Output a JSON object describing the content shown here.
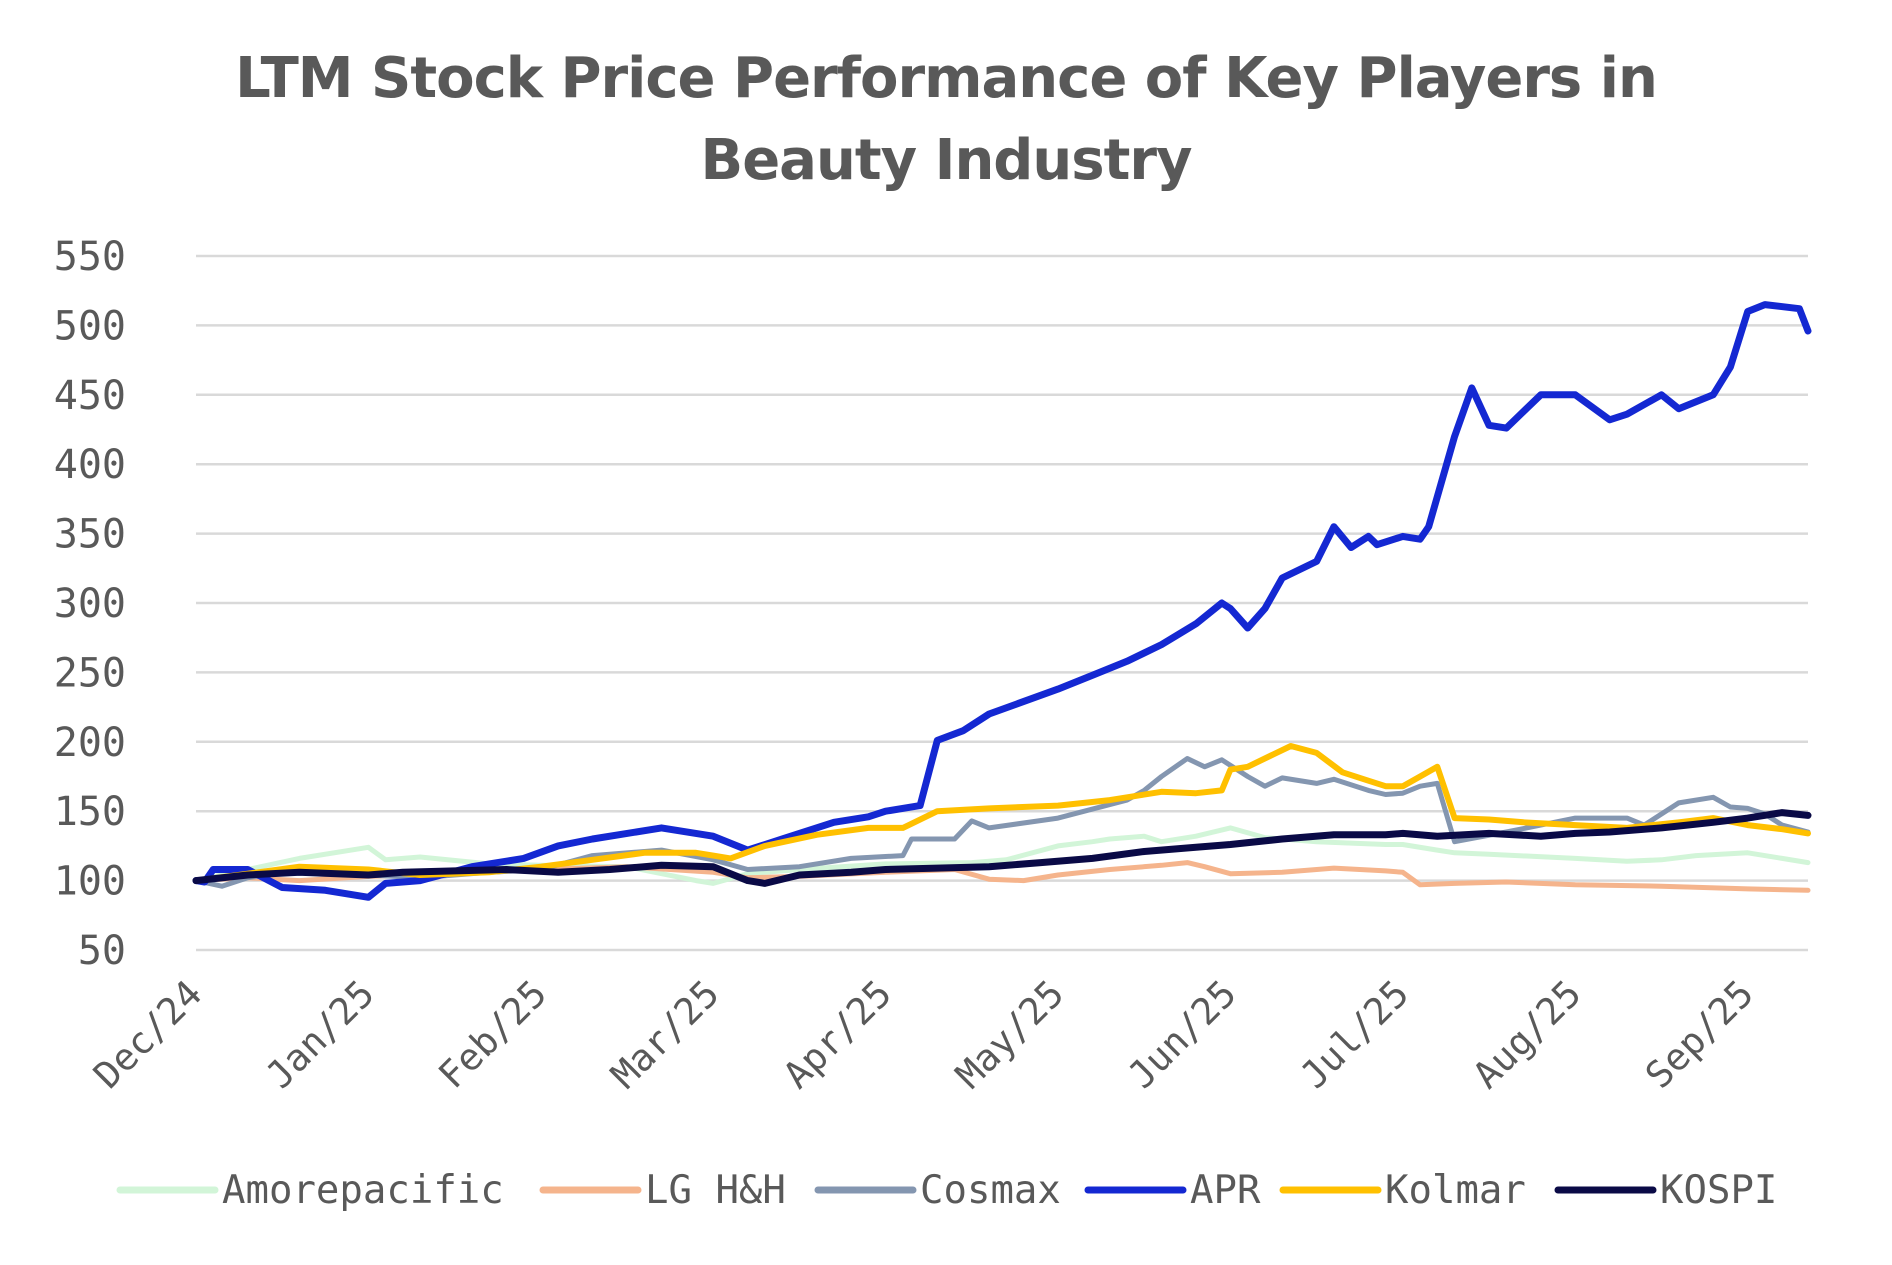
{
  "chart_data": {
    "type": "line",
    "title_line1": "LTM Stock Price Performance of Key Players in",
    "title_line2": "Beauty Industry",
    "xlabel": "",
    "ylabel": "",
    "ylim": [
      50,
      550
    ],
    "yticks": [
      50,
      100,
      150,
      200,
      250,
      300,
      350,
      400,
      450,
      500,
      550
    ],
    "ytick_labels": [
      "50",
      "100",
      "150",
      "200",
      "250",
      "300",
      "350",
      "400",
      "450",
      "500",
      "550"
    ],
    "xlim": [
      0,
      9.35
    ],
    "xticks": [
      0,
      1,
      2,
      3,
      4,
      5,
      6,
      7,
      8,
      9
    ],
    "xtick_labels": [
      "Dec/24",
      "Jan/25",
      "Feb/25",
      "Mar/25",
      "Apr/25",
      "May/25",
      "Jun/25",
      "Jul/25",
      "Aug/25",
      "Sep/25"
    ],
    "grid": true,
    "legend_position": "bottom",
    "series": [
      {
        "name": "Amorepacific",
        "color": "#d2f5d8",
        "x": [
          0,
          0.3,
          0.6,
          1.0,
          1.1,
          1.3,
          1.7,
          2.0,
          2.5,
          2.9,
          3.0,
          3.2,
          3.5,
          4.0,
          4.5,
          4.6,
          4.7,
          5.0,
          5.2,
          5.3,
          5.5,
          5.6,
          5.8,
          6.0,
          6.2,
          6.5,
          6.9,
          7.0,
          7.2,
          7.3,
          7.5,
          8.0,
          8.3,
          8.5,
          8.7,
          9.0,
          9.2,
          9.35
        ],
        "values": [
          100,
          108,
          116,
          124,
          115,
          117,
          112,
          111,
          110,
          100,
          98,
          105,
          108,
          112,
          113,
          114,
          115,
          125,
          128,
          130,
          132,
          128,
          132,
          138,
          131,
          128,
          126,
          126,
          122,
          120,
          119,
          116,
          114,
          115,
          118,
          120,
          116,
          113
        ]
      },
      {
        "name": "LG H&H",
        "color": "#f5b48c",
        "x": [
          0,
          0.3,
          0.6,
          1.0,
          1.3,
          1.7,
          2.0,
          2.5,
          3.0,
          3.2,
          3.5,
          4.0,
          4.4,
          4.6,
          4.8,
          5.0,
          5.3,
          5.6,
          5.75,
          5.85,
          6.0,
          6.3,
          6.6,
          6.9,
          7.0,
          7.1,
          7.3,
          7.6,
          8.0,
          8.5,
          9.0,
          9.35
        ],
        "values": [
          100,
          102,
          100,
          103,
          104,
          106,
          108,
          110,
          106,
          102,
          103,
          106,
          108,
          101,
          100,
          104,
          108,
          111,
          113,
          110,
          105,
          106,
          109,
          107,
          106,
          97,
          98,
          99,
          97,
          96,
          94,
          93
        ]
      },
      {
        "name": "Cosmax",
        "color": "#8496b0",
        "x": [
          0,
          0.15,
          0.3,
          0.6,
          1.0,
          1.3,
          1.7,
          2.0,
          2.3,
          2.7,
          3.0,
          3.2,
          3.5,
          3.8,
          4.1,
          4.15,
          4.4,
          4.5,
          4.6,
          5.0,
          5.4,
          5.5,
          5.6,
          5.75,
          5.85,
          5.95,
          6.1,
          6.2,
          6.3,
          6.5,
          6.6,
          6.8,
          6.9,
          7.0,
          7.1,
          7.2,
          7.3,
          7.6,
          7.8,
          8.0,
          8.3,
          8.4,
          8.6,
          8.8,
          8.9,
          9.0,
          9.1,
          9.2,
          9.35
        ],
        "values": [
          100,
          96,
          102,
          108,
          104,
          102,
          106,
          108,
          118,
          122,
          115,
          108,
          110,
          116,
          118,
          130,
          130,
          143,
          138,
          145,
          158,
          165,
          175,
          188,
          182,
          187,
          175,
          168,
          174,
          170,
          173,
          165,
          162,
          163,
          168,
          170,
          128,
          135,
          140,
          145,
          145,
          140,
          156,
          160,
          153,
          152,
          148,
          140,
          135
        ]
      },
      {
        "name": "APR",
        "color": "#1428d2",
        "x": [
          0,
          0.05,
          0.1,
          0.3,
          0.5,
          0.75,
          1.0,
          1.1,
          1.3,
          1.6,
          1.9,
          2.1,
          2.3,
          2.7,
          3.0,
          3.2,
          3.4,
          3.7,
          3.9,
          4.0,
          4.2,
          4.3,
          4.45,
          4.6,
          5.0,
          5.2,
          5.4,
          5.6,
          5.8,
          5.95,
          6.0,
          6.1,
          6.2,
          6.3,
          6.5,
          6.6,
          6.7,
          6.8,
          6.85,
          7.0,
          7.1,
          7.15,
          7.3,
          7.4,
          7.5,
          7.6,
          7.8,
          8.0,
          8.2,
          8.3,
          8.5,
          8.6,
          8.8,
          8.9,
          9.0,
          9.1,
          9.3,
          9.35
        ],
        "values": [
          100,
          99,
          108,
          108,
          95,
          93,
          88,
          98,
          100,
          110,
          116,
          125,
          130,
          138,
          132,
          122,
          130,
          142,
          146,
          150,
          154,
          201,
          208,
          220,
          238,
          248,
          258,
          270,
          285,
          300,
          296,
          282,
          296,
          318,
          330,
          355,
          340,
          348,
          342,
          348,
          346,
          355,
          420,
          455,
          428,
          426,
          450,
          450,
          432,
          436,
          450,
          440,
          450,
          470,
          510,
          515,
          512,
          496
        ]
      },
      {
        "name": "Kolmar",
        "color": "#ffc000",
        "x": [
          0,
          0.3,
          0.6,
          1.0,
          1.3,
          1.7,
          2.0,
          2.3,
          2.6,
          2.9,
          3.0,
          3.1,
          3.3,
          3.6,
          3.9,
          4.1,
          4.3,
          4.6,
          5.0,
          5.3,
          5.6,
          5.8,
          5.95,
          6.0,
          6.1,
          6.25,
          6.35,
          6.5,
          6.65,
          6.8,
          6.9,
          7.0,
          7.1,
          7.2,
          7.3,
          7.5,
          7.7,
          8.0,
          8.3,
          8.6,
          8.8,
          9.0,
          9.2,
          9.35
        ],
        "values": [
          100,
          105,
          110,
          108,
          104,
          106,
          110,
          115,
          120,
          120,
          118,
          116,
          125,
          133,
          138,
          138,
          150,
          152,
          154,
          158,
          164,
          163,
          165,
          180,
          182,
          191,
          197,
          192,
          178,
          172,
          168,
          168,
          175,
          182,
          145,
          144,
          142,
          140,
          138,
          142,
          145,
          140,
          137,
          134
        ]
      },
      {
        "name": "KOSPI",
        "color": "#0a0a46",
        "x": [
          0,
          0.3,
          0.6,
          1.0,
          1.2,
          1.5,
          1.8,
          2.1,
          2.4,
          2.7,
          3.0,
          3.2,
          3.3,
          3.5,
          3.8,
          4.0,
          4.3,
          4.6,
          4.9,
          5.2,
          5.5,
          5.8,
          6.0,
          6.3,
          6.6,
          6.9,
          7.0,
          7.2,
          7.5,
          7.8,
          8.0,
          8.2,
          8.5,
          8.8,
          9.0,
          9.2,
          9.35
        ],
        "values": [
          100,
          104,
          106,
          104,
          106,
          107,
          108,
          106,
          108,
          111,
          110,
          100,
          98,
          104,
          106,
          108,
          109,
          110,
          113,
          116,
          121,
          124,
          126,
          130,
          133,
          133,
          134,
          132,
          134,
          132,
          134,
          135,
          138,
          142,
          145,
          149,
          147
        ]
      }
    ]
  }
}
